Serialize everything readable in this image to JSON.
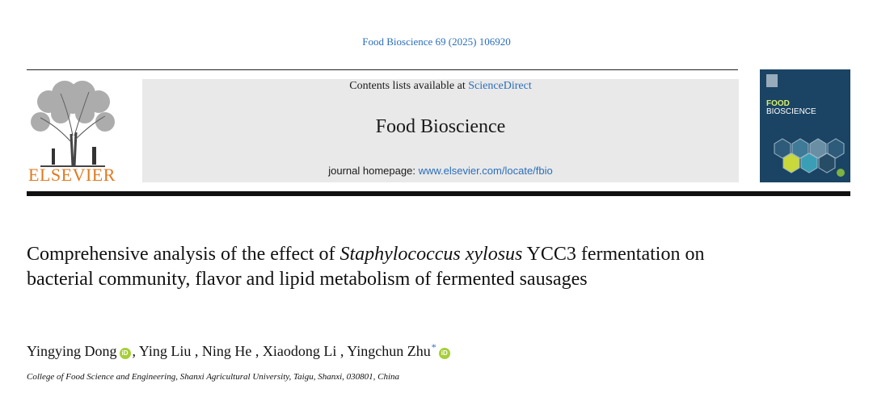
{
  "citation": "Food Bioscience 69 (2025) 106920",
  "publisher": {
    "name": "ELSEVIER"
  },
  "banner": {
    "contents_prefix": "Contents lists available at ",
    "contents_link": "ScienceDirect",
    "journal_title": "Food Bioscience",
    "homepage_prefix": "journal homepage: ",
    "homepage_link": "www.elsevier.com/locate/fbio"
  },
  "cover": {
    "line1": "FOOD",
    "line2": "BIOSCIENCE"
  },
  "article": {
    "title_part1": "Comprehensive analysis of the effect of ",
    "title_species": "Staphylococcus xylosus",
    "title_part2": " YCC3 fermentation on bacterial community, flavor and lipid metabolism of fermented sausages",
    "authors": [
      {
        "name": "Yingying Dong",
        "orcid": true,
        "corresponding": false
      },
      {
        "name": "Ying Liu",
        "orcid": false,
        "corresponding": false
      },
      {
        "name": "Ning He",
        "orcid": false,
        "corresponding": false
      },
      {
        "name": "Xiaodong Li",
        "orcid": false,
        "corresponding": false
      },
      {
        "name": "Yingchun Zhu",
        "orcid": true,
        "corresponding": true
      }
    ],
    "separator": " , ",
    "orcid_label": "iD",
    "corresponding_mark": "*",
    "affiliation": "College of Food Science and Engineering, Shanxi Agricultural University, Taigu, Shanxi, 030801, China"
  }
}
